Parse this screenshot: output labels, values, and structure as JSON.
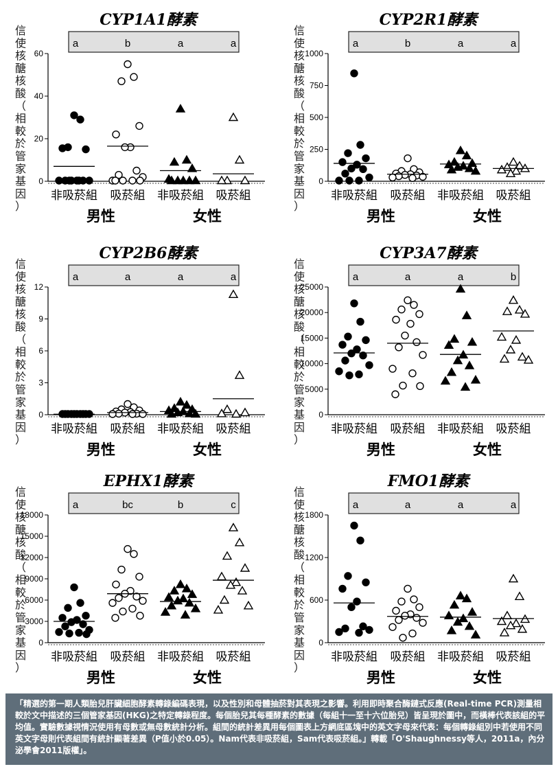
{
  "common": {
    "ylabel_chars": [
      "信",
      "使",
      "核",
      "醣",
      "核",
      "酸",
      "（",
      "相",
      "較",
      "於",
      "管",
      "家",
      "基",
      "因",
      "）"
    ],
    "x_groups": [
      "非吸菸組",
      "吸菸組",
      "非吸菸組",
      "吸菸組"
    ],
    "sex_labels": [
      "男性",
      "女性"
    ],
    "marker_types": [
      "filled-circle",
      "open-circle",
      "filled-triangle",
      "open-triangle"
    ]
  },
  "chart_data": [
    {
      "type": "scatter",
      "title": "CYP1A1酵素",
      "ylim": [
        0,
        60
      ],
      "yticks": [
        0,
        20,
        40,
        60
      ],
      "significance_letters": [
        "a",
        "b",
        "a",
        "a"
      ],
      "groups": [
        {
          "name": "非吸菸組",
          "sex": "男性",
          "mean": 7,
          "values": [
            31,
            29,
            16,
            15,
            15.5,
            0,
            0,
            0,
            0,
            0,
            0,
            0,
            0
          ]
        },
        {
          "name": "吸菸組",
          "sex": "男性",
          "mean": 16.5,
          "values": [
            55,
            49,
            47,
            26,
            22,
            16,
            16,
            5,
            3,
            2,
            0,
            0,
            0,
            0,
            0
          ]
        },
        {
          "name": "非吸菸組",
          "sex": "女性",
          "mean": 5,
          "values": [
            34,
            10,
            9,
            6,
            1,
            0,
            0,
            0,
            0,
            0
          ]
        },
        {
          "name": "吸菸組",
          "sex": "女性",
          "mean": 3.5,
          "values": [
            30,
            10,
            0,
            0,
            0
          ]
        }
      ]
    },
    {
      "type": "scatter",
      "title": "CYP2R1酵素",
      "ylim": [
        0,
        1000
      ],
      "yticks": [
        0,
        250,
        500,
        750,
        1000
      ],
      "significance_letters": [
        "a",
        "b",
        "a",
        "a"
      ],
      "groups": [
        {
          "name": "非吸菸組",
          "sex": "男性",
          "mean": 140,
          "values": [
            845,
            285,
            220,
            180,
            150,
            130,
            100,
            95,
            60,
            30,
            5,
            5,
            0
          ]
        },
        {
          "name": "吸菸組",
          "sex": "男性",
          "mean": 55,
          "values": [
            180,
            95,
            80,
            70,
            60,
            55,
            50,
            45,
            40,
            35,
            30,
            25
          ]
        },
        {
          "name": "非吸菸組",
          "sex": "女性",
          "mean": 135,
          "values": [
            240,
            200,
            150,
            140,
            130,
            120,
            110,
            100,
            90,
            80
          ]
        },
        {
          "name": "吸菸組",
          "sex": "女性",
          "mean": 100,
          "values": [
            150,
            120,
            110,
            100,
            90,
            80,
            60
          ]
        }
      ]
    },
    {
      "type": "scatter",
      "title": "CYP2B6酵素",
      "ylim": [
        0,
        12
      ],
      "yticks": [
        0,
        3,
        6,
        9,
        12
      ],
      "significance_letters": [
        "a",
        "a",
        "a",
        "a"
      ],
      "groups": [
        {
          "name": "非吸菸組",
          "sex": "男性",
          "mean": 0.05,
          "values": [
            0.02,
            0.03,
            0.05,
            0.05,
            0.06,
            0.03,
            0.02,
            0.04,
            0.05,
            0.06
          ]
        },
        {
          "name": "吸菸組",
          "sex": "男性",
          "mean": 0.2,
          "values": [
            1.0,
            0.7,
            0.5,
            0.4,
            0.3,
            0.25,
            0.2,
            0.1,
            0.1,
            0.05,
            0.05,
            0.02
          ]
        },
        {
          "name": "非吸菸組",
          "sex": "女性",
          "mean": 0.3,
          "values": [
            1.2,
            0.9,
            0.6,
            0.5,
            0.4,
            0.3,
            0.2,
            0.1,
            0.05,
            0.05
          ]
        },
        {
          "name": "吸菸組",
          "sex": "女性",
          "mean": 1.5,
          "values": [
            11.3,
            3.7,
            0.5,
            0.2,
            0.1,
            0.05
          ]
        }
      ]
    },
    {
      "type": "scatter",
      "title": "CYP3A7酵素",
      "ylim": [
        0,
        25000
      ],
      "yticks": [
        0,
        5000,
        10000,
        15000,
        20000,
        25000
      ],
      "significance_letters": [
        "a",
        "a",
        "a",
        "b"
      ],
      "groups": [
        {
          "name": "非吸菸組",
          "sex": "男性",
          "mean": 12100,
          "values": [
            21800,
            18200,
            15300,
            14600,
            13700,
            12800,
            12000,
            11600,
            10600,
            9700,
            8500,
            7900,
            7700
          ]
        },
        {
          "name": "吸菸組",
          "sex": "男性",
          "mean": 14000,
          "values": [
            22400,
            21500,
            20600,
            19700,
            18600,
            17800,
            15500,
            14200,
            13200,
            11700,
            9000,
            8100,
            5700,
            5600,
            4000
          ]
        },
        {
          "name": "非吸菸組",
          "sex": "女性",
          "mean": 11800,
          "values": [
            24600,
            19400,
            14800,
            14200,
            13600,
            11700,
            10600,
            9600,
            8300,
            6800,
            6600,
            5400
          ]
        },
        {
          "name": "吸菸組",
          "sex": "女性",
          "mean": 16400,
          "values": [
            22400,
            20500,
            20200,
            19700,
            15200,
            14600,
            12700,
            11300,
            10900,
            10700
          ]
        }
      ]
    },
    {
      "type": "scatter",
      "title": "EPHX1酵素",
      "ylim": [
        0,
        18000
      ],
      "yticks": [
        0,
        3000,
        6000,
        9000,
        12000,
        15000,
        18000
      ],
      "significance_letters": [
        "a",
        "bc",
        "b",
        "c"
      ],
      "groups": [
        {
          "name": "非吸菸組",
          "sex": "男性",
          "mean": 3000,
          "values": [
            7800,
            5600,
            4900,
            3800,
            3500,
            3200,
            2900,
            2600,
            2300,
            1800,
            1500,
            1400,
            1300,
            1200
          ]
        },
        {
          "name": "吸菸組",
          "sex": "男性",
          "mean": 6900,
          "values": [
            13200,
            12500,
            10300,
            9300,
            8200,
            7300,
            6900,
            6500,
            6300,
            5900,
            5600,
            4800,
            4400,
            3800,
            3500
          ]
        },
        {
          "name": "非吸菸組",
          "sex": "女性",
          "mean": 5800,
          "values": [
            8200,
            7600,
            7300,
            6800,
            6400,
            6200,
            5900,
            5600,
            5200,
            4800,
            4300,
            3900
          ]
        },
        {
          "name": "吸菸組",
          "sex": "女性",
          "mean": 8800,
          "values": [
            16200,
            14100,
            12200,
            10500,
            9300,
            8500,
            8100,
            7300,
            6000,
            5200,
            4600
          ]
        }
      ]
    },
    {
      "type": "scatter",
      "title": "FMO1酵素",
      "ylim": [
        0,
        1800
      ],
      "yticks": [
        0,
        600,
        1200,
        1800
      ],
      "significance_letters": [
        "a",
        "a",
        "a",
        "a"
      ],
      "groups": [
        {
          "name": "非吸菸組",
          "sex": "男性",
          "mean": 560,
          "values": [
            1650,
            1440,
            940,
            850,
            760,
            580,
            500,
            230,
            200,
            180,
            150,
            140
          ]
        },
        {
          "name": "吸菸組",
          "sex": "男性",
          "mean": 370,
          "values": [
            760,
            610,
            580,
            500,
            450,
            400,
            380,
            350,
            320,
            280,
            220,
            130,
            70
          ]
        },
        {
          "name": "非吸菸組",
          "sex": "女性",
          "mean": 360,
          "values": [
            660,
            620,
            530,
            430,
            380,
            340,
            290,
            230,
            170,
            110
          ]
        },
        {
          "name": "吸菸組",
          "sex": "女性",
          "mean": 340,
          "values": [
            900,
            650,
            380,
            330,
            300,
            270,
            240,
            190,
            140
          ]
        }
      ]
    }
  ],
  "caption": "「精選的第一期人類胎兒肝臟細胞酵素轉錄編碼表現，以及性別和母體抽菸對其表現之影響。利用即時聚合酶鏈式反應(Real-time PCR)測量相較於文中描述的三個管家基因(HKG)之特定轉錄程度。每個胎兒其每種酵素的數據（每組十一至十六位胎兒）皆呈現於圖中，而橫棒代表該組的平均值。實驗數據視情況使用有母數或無母數統計分析。組間的統計差異用每個圖表上方網底區塊中的英文字母來代表：每個轉錄組別中若使用不同英文字母則代表組間有統計顯著差異（P值小於0.05）。Nam代表非吸菸組，Sam代表吸菸組。」轉載「O'Shaughnessy等人，2011a，內分泌學會2011版權」。"
}
